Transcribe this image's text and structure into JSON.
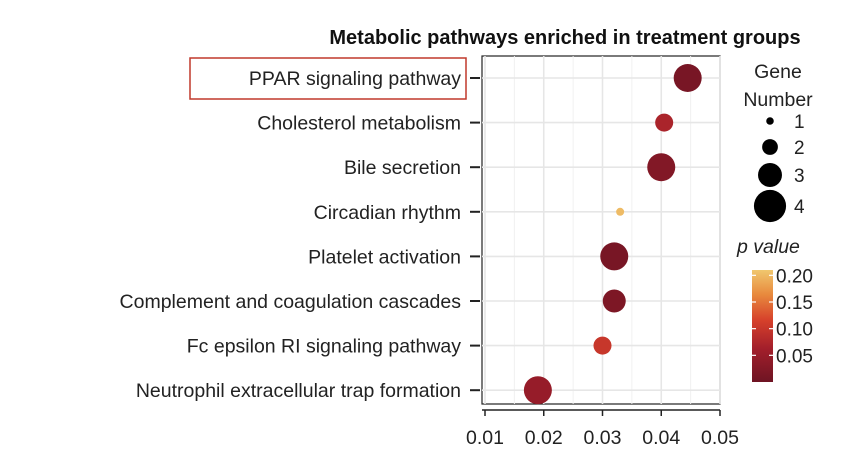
{
  "chart_data": {
    "type": "scatter",
    "title": "Metabolic pathways enriched in treatment groups",
    "xlabel": "",
    "ylabel": "",
    "xlim": [
      0.01,
      0.05
    ],
    "xticks": [
      "0.01",
      "0.02",
      "0.03",
      "0.04",
      "0.05"
    ],
    "xtick_values": [
      0.01,
      0.02,
      0.03,
      0.04,
      0.05
    ],
    "grid": true,
    "highlighted_category": "PPAR signaling pathway",
    "highlight_color": "#c0392b",
    "points": [
      {
        "category": "PPAR signaling pathway",
        "x": 0.0445,
        "gene_number": 3,
        "p_value": 0.01
      },
      {
        "category": "Cholesterol metabolism",
        "x": 0.0405,
        "gene_number": 2,
        "p_value": 0.06
      },
      {
        "category": "Bile secretion",
        "x": 0.04,
        "gene_number": 3,
        "p_value": 0.02
      },
      {
        "category": "Circadian rhythm",
        "x": 0.033,
        "gene_number": 1,
        "p_value": 0.2
      },
      {
        "category": "Platelet activation",
        "x": 0.032,
        "gene_number": 3,
        "p_value": 0.01
      },
      {
        "category": "Complement and coagulation cascades",
        "x": 0.032,
        "gene_number": 2.5,
        "p_value": 0.015
      },
      {
        "category": "Fc epsilon RI signaling pathway",
        "x": 0.03,
        "gene_number": 2,
        "p_value": 0.09
      },
      {
        "category": "Neutrophil extracellular trap formation",
        "x": 0.019,
        "gene_number": 3,
        "p_value": 0.04
      }
    ],
    "size_legend": {
      "title_lines": [
        "Gene",
        "Number"
      ],
      "entries": [
        {
          "label": "1",
          "value": 1
        },
        {
          "label": "2",
          "value": 2
        },
        {
          "label": "3",
          "value": 3
        },
        {
          "label": "4",
          "value": 4
        }
      ],
      "placement": "right"
    },
    "color_legend": {
      "title": "p value",
      "labels": [
        "0.20",
        "0.15",
        "0.10",
        "0.05"
      ],
      "label_values": [
        0.2,
        0.15,
        0.1,
        0.05
      ],
      "range": [
        0.0,
        0.21
      ],
      "colors": [
        "#f0c76e",
        "#e8893d",
        "#d6402b",
        "#a31f2b",
        "#6e1423"
      ],
      "placement": "right"
    }
  }
}
